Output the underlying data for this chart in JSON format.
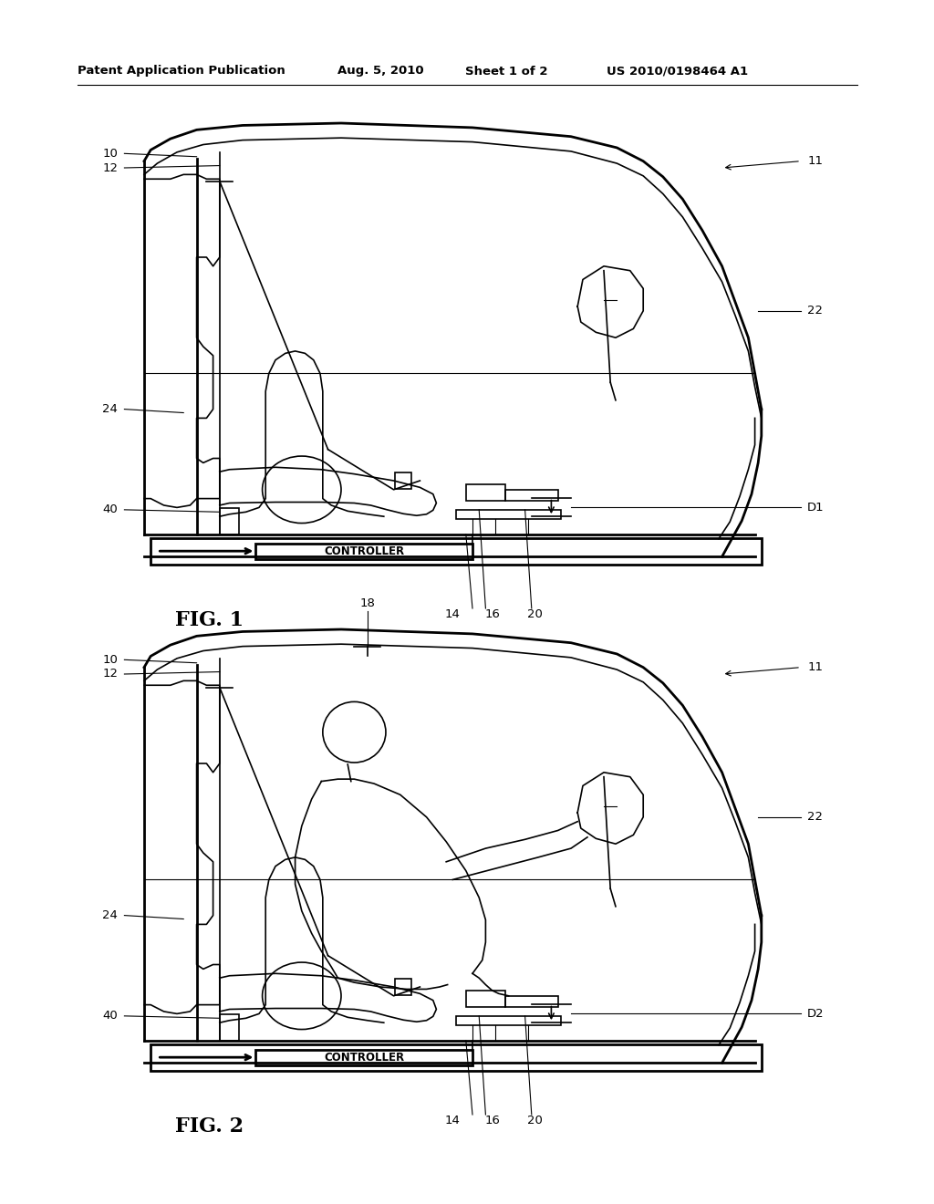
{
  "bg_color": "#ffffff",
  "line_color": "#000000",
  "page_width": 10.24,
  "page_height": 13.2,
  "header_text": "Patent Application Publication",
  "header_date": "Aug. 5, 2010",
  "header_sheet": "Sheet 1 of 2",
  "header_patent": "US 2010/0198464 A1",
  "fig1_title": "FIG. 1",
  "fig2_title": "FIG. 2"
}
